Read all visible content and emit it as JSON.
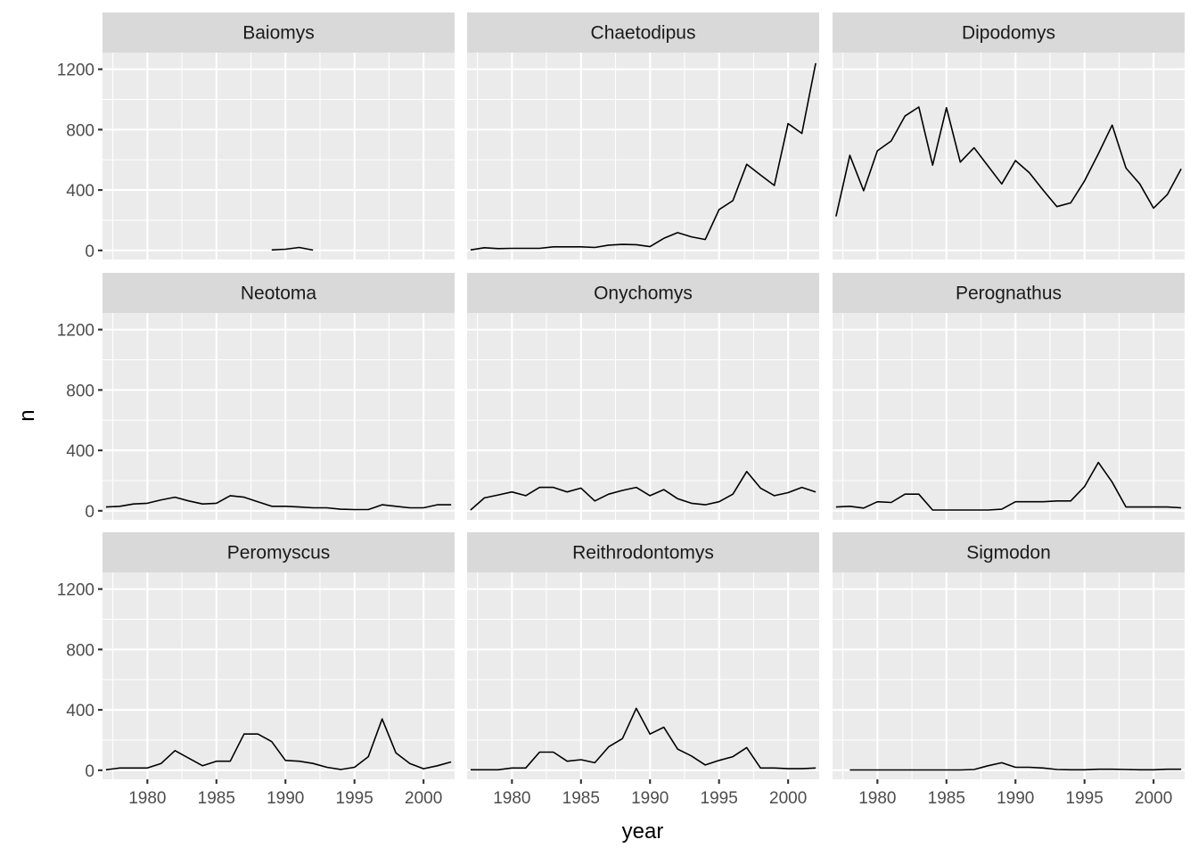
{
  "chart_data": {
    "type": "line",
    "xlabel": "year",
    "ylabel": "n",
    "xlim": [
      1976.75,
      2002.25
    ],
    "ylim": [
      -60,
      1310
    ],
    "x_ticks": [
      1980,
      1985,
      1990,
      1995,
      2000
    ],
    "y_ticks": [
      0,
      400,
      800,
      1200
    ],
    "grid": true,
    "layout": "3x3 facet grid, shared axes",
    "line_color": "#000000",
    "panel_background": "#ebebeb",
    "strip_background": "#d9d9d9",
    "panels": [
      {
        "name": "Baiomys",
        "x": [
          1989,
          1990,
          1991,
          1992
        ],
        "values": [
          3,
          8,
          20,
          2
        ]
      },
      {
        "name": "Chaetodipus",
        "x": [
          1977,
          1978,
          1979,
          1980,
          1981,
          1982,
          1983,
          1984,
          1985,
          1986,
          1987,
          1988,
          1989,
          1990,
          1991,
          1992,
          1993,
          1994,
          1995,
          1996,
          1997,
          1998,
          1999,
          2000,
          2001,
          2002
        ],
        "values": [
          3,
          18,
          12,
          14,
          14,
          14,
          24,
          24,
          24,
          20,
          35,
          40,
          38,
          25,
          80,
          118,
          90,
          72,
          270,
          330,
          570,
          500,
          430,
          840,
          775,
          1240
        ]
      },
      {
        "name": "Dipodomys",
        "x": [
          1977,
          1978,
          1979,
          1980,
          1981,
          1982,
          1983,
          1984,
          1985,
          1986,
          1987,
          1988,
          1989,
          1990,
          1991,
          1992,
          1993,
          1994,
          1995,
          1996,
          1997,
          1998,
          1999,
          2000,
          2001,
          2002
        ],
        "values": [
          225,
          630,
          395,
          660,
          725,
          890,
          950,
          565,
          945,
          585,
          680,
          560,
          440,
          595,
          515,
          400,
          290,
          315,
          460,
          640,
          830,
          545,
          440,
          280,
          370,
          540
        ]
      },
      {
        "name": "Neotoma",
        "x": [
          1977,
          1978,
          1979,
          1980,
          1981,
          1982,
          1983,
          1984,
          1985,
          1986,
          1987,
          1988,
          1989,
          1990,
          1991,
          1992,
          1993,
          1994,
          1995,
          1996,
          1997,
          1998,
          1999,
          2000,
          2001,
          2002
        ],
        "values": [
          25,
          30,
          45,
          50,
          72,
          90,
          65,
          45,
          50,
          100,
          90,
          60,
          30,
          30,
          25,
          20,
          20,
          10,
          8,
          8,
          40,
          30,
          20,
          20,
          40,
          40
        ]
      },
      {
        "name": "Onychomys",
        "x": [
          1977,
          1978,
          1979,
          1980,
          1981,
          1982,
          1983,
          1984,
          1985,
          1986,
          1987,
          1988,
          1989,
          1990,
          1991,
          1992,
          1993,
          1994,
          1995,
          1996,
          1997,
          1998,
          1999,
          2000,
          2001,
          2002
        ],
        "values": [
          5,
          85,
          105,
          125,
          100,
          155,
          155,
          125,
          150,
          65,
          110,
          135,
          155,
          100,
          140,
          80,
          50,
          40,
          60,
          110,
          260,
          150,
          100,
          120,
          155,
          125
        ]
      },
      {
        "name": "Perognathus",
        "x": [
          1977,
          1978,
          1979,
          1980,
          1981,
          1982,
          1983,
          1984,
          1985,
          1986,
          1987,
          1988,
          1989,
          1990,
          1991,
          1992,
          1993,
          1994,
          1995,
          1996,
          1997,
          1998,
          1999,
          2000,
          2001,
          2002
        ],
        "values": [
          25,
          30,
          18,
          60,
          55,
          110,
          110,
          5,
          5,
          5,
          5,
          5,
          10,
          60,
          60,
          60,
          65,
          65,
          160,
          320,
          190,
          25,
          25,
          25,
          25,
          20
        ]
      },
      {
        "name": "Peromyscus",
        "x": [
          1977,
          1978,
          1979,
          1980,
          1981,
          1982,
          1983,
          1984,
          1985,
          1986,
          1987,
          1988,
          1989,
          1990,
          1991,
          1992,
          1993,
          1994,
          1995,
          1996,
          1997,
          1998,
          1999,
          2000,
          2001,
          2002
        ],
        "values": [
          3,
          15,
          15,
          15,
          45,
          130,
          80,
          30,
          60,
          60,
          240,
          240,
          190,
          65,
          60,
          45,
          20,
          5,
          20,
          90,
          340,
          115,
          45,
          10,
          30,
          55
        ]
      },
      {
        "name": "Reithrodontomys",
        "x": [
          1977,
          1978,
          1979,
          1980,
          1981,
          1982,
          1983,
          1984,
          1985,
          1986,
          1987,
          1988,
          1989,
          1990,
          1991,
          1992,
          1993,
          1994,
          1995,
          1996,
          1997,
          1998,
          1999,
          2000,
          2001,
          2002
        ],
        "values": [
          3,
          3,
          3,
          15,
          15,
          120,
          120,
          60,
          70,
          50,
          155,
          210,
          410,
          240,
          285,
          140,
          95,
          35,
          65,
          90,
          150,
          15,
          15,
          10,
          10,
          15
        ]
      },
      {
        "name": "Sigmodon",
        "x": [
          1978,
          1979,
          1980,
          1981,
          1982,
          1983,
          1984,
          1985,
          1986,
          1987,
          1988,
          1989,
          1990,
          1991,
          1992,
          1993,
          1994,
          1995,
          1996,
          1997,
          1998,
          1999,
          2000,
          2001,
          2002
        ],
        "values": [
          2,
          2,
          2,
          2,
          2,
          2,
          2,
          2,
          2,
          5,
          30,
          50,
          20,
          20,
          15,
          5,
          3,
          3,
          7,
          7,
          5,
          3,
          3,
          7,
          7
        ]
      }
    ]
  }
}
